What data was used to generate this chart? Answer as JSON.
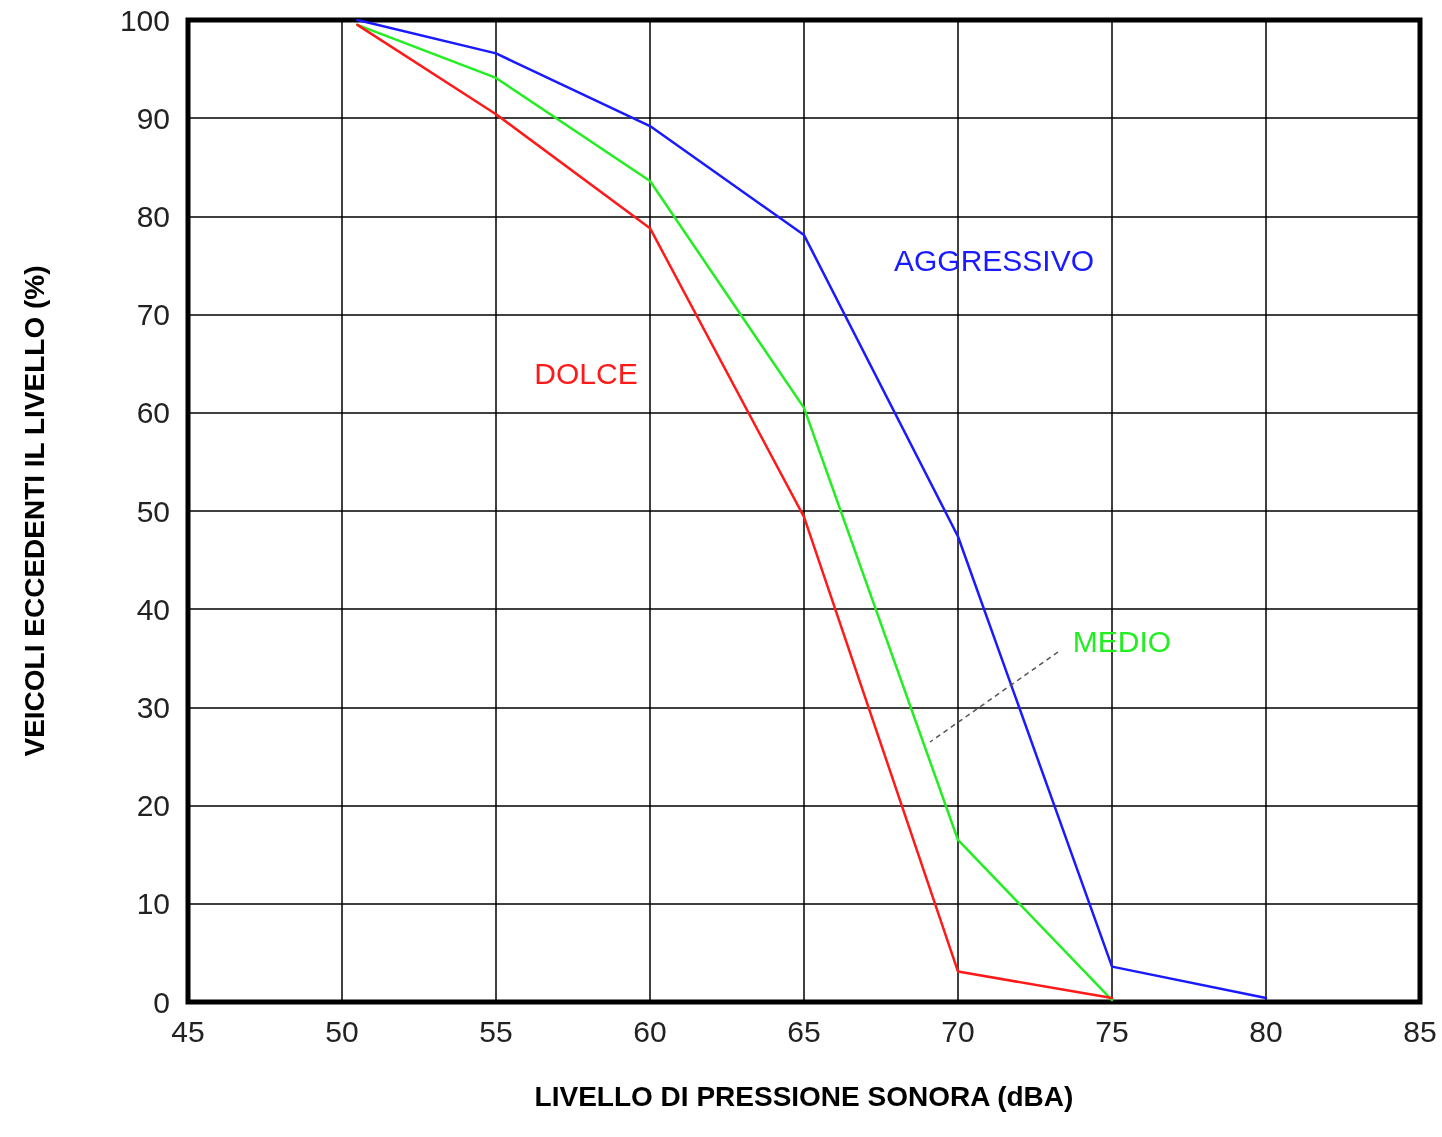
{
  "chart_data": {
    "type": "line",
    "xlabel": "LIVELLO DI PRESSIONE SONORA (dBA)",
    "ylabel": "VEICOLI ECCEDENTI IL LIVELLO (%)",
    "x": [
      50.5,
      55,
      60,
      65,
      70,
      75,
      80
    ],
    "series": [
      {
        "name": "AGGRESSIVO",
        "color": "#1a1aff",
        "values": [
          100,
          96.6,
          89.2,
          78.1,
          47.4,
          3.6,
          0.4
        ]
      },
      {
        "name": "MEDIO",
        "color": "#22ee22",
        "values": [
          99.5,
          94.1,
          83.6,
          60.5,
          16.5,
          0.2,
          null
        ]
      },
      {
        "name": "DOLCE",
        "color": "#ff1a1a",
        "values": [
          99.5,
          90.4,
          78.8,
          49.4,
          3.1,
          0.4,
          null
        ]
      }
    ],
    "xlim": [
      45,
      85
    ],
    "xticks": [
      45,
      50,
      55,
      60,
      65,
      70,
      75,
      80,
      85
    ],
    "ylim": [
      0,
      100
    ],
    "yticks": [
      0,
      10,
      20,
      30,
      40,
      50,
      60,
      70,
      80,
      90,
      100
    ],
    "grid": true,
    "legend": false,
    "marker": "none",
    "line_style": "solid"
  }
}
